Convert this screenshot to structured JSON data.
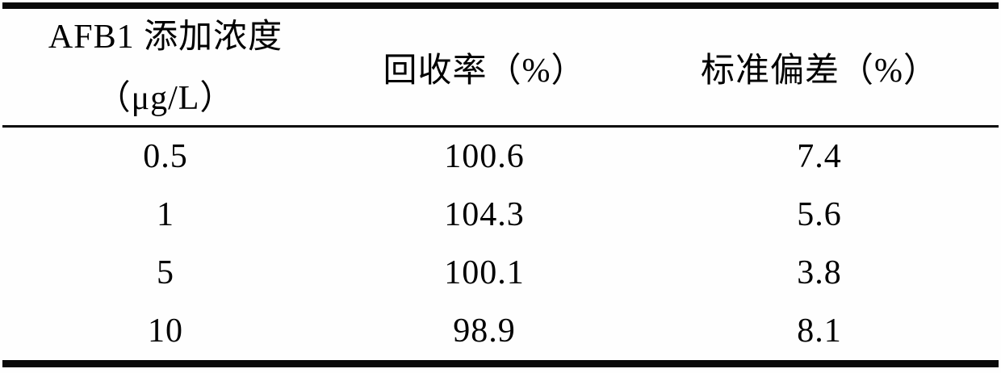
{
  "table": {
    "header": {
      "col1_line1": "AFB1 添加浓度",
      "col1_line2": "（μg/L）",
      "col2": "回收率（%）",
      "col3": "标准偏差（%）"
    },
    "rows": [
      [
        "0.5",
        "100.6",
        "7.4"
      ],
      [
        "1",
        "104.3",
        "5.6"
      ],
      [
        "5",
        "100.1",
        "3.8"
      ],
      [
        "10",
        "98.9",
        "8.1"
      ]
    ]
  },
  "chart_data": {
    "type": "table",
    "title": "",
    "columns": [
      "AFB1 添加浓度（μg/L）",
      "回收率（%）",
      "标准偏差（%）"
    ],
    "rows": [
      [
        0.5,
        100.6,
        7.4
      ],
      [
        1,
        104.3,
        5.6
      ],
      [
        5,
        100.1,
        3.8
      ],
      [
        10,
        98.9,
        8.1
      ]
    ]
  },
  "colors": {
    "background": "#fefefe",
    "rule": "#0a0a0a",
    "text": "#000000"
  }
}
